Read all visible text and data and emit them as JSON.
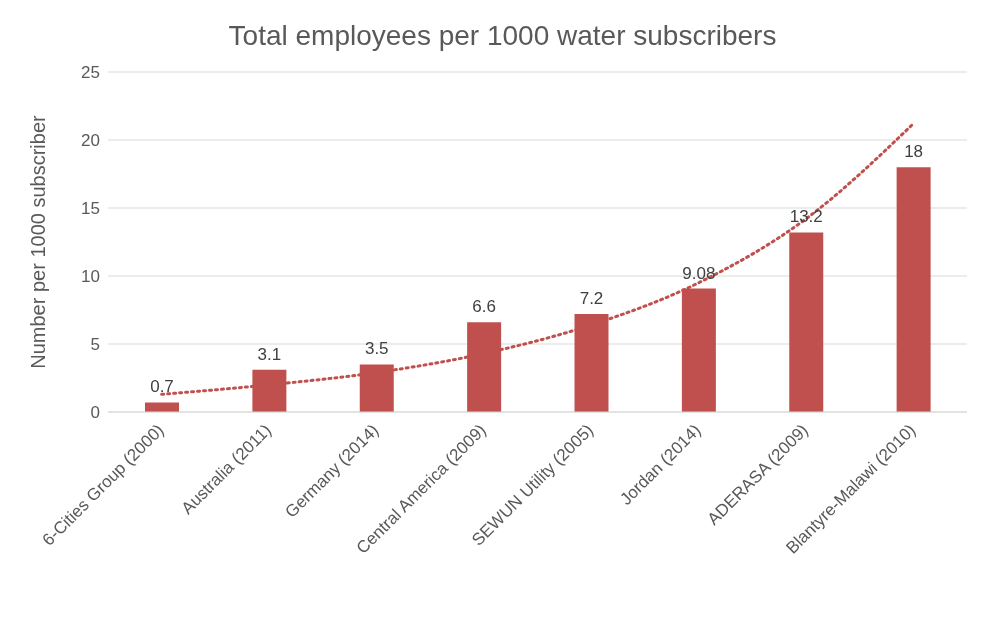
{
  "chart_data": {
    "type": "bar",
    "title": "Total employees per 1000 water subscribers",
    "ylabel": "Number per 1000 subscriber",
    "categories": [
      "6-Cities Group (2000)",
      "Australia (2011)",
      "Germany (2014)",
      "Central America (2009)",
      "SEWUN Utility (2005)",
      "Jordan (2014)",
      "ADERASA (2009)",
      "Blantyre-Malawi (2010)"
    ],
    "series": [
      {
        "color": "#c0504d",
        "values": [
          0.7,
          3.1,
          3.5,
          6.6,
          7.2,
          9.08,
          13.2,
          18
        ],
        "data_labels": true
      },
      {
        "type": "line",
        "color": "#c0504d",
        "line_style": "dotted",
        "marker": "none",
        "values": [
          1.3,
          2.0,
          2.9,
          4.3,
          6.4,
          9.5,
          14.2,
          21.2
        ]
      }
    ],
    "ylim": [
      0,
      25
    ],
    "yticks": [
      0,
      5,
      10,
      15,
      20,
      25
    ],
    "grid": "y",
    "legend": false
  }
}
